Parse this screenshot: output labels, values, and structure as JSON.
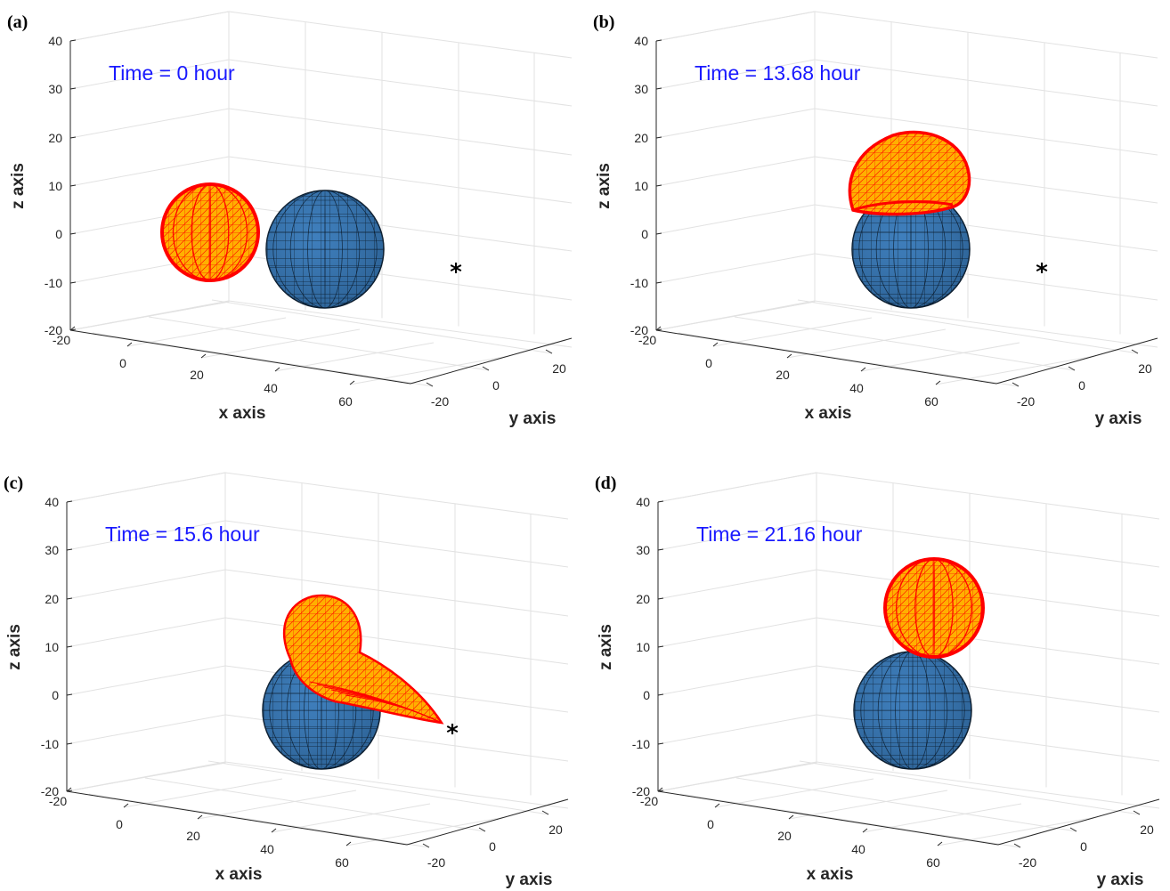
{
  "colors": {
    "time_text": "#1a1aff",
    "blue_sphere": "#3a7ab8",
    "mesh_edge": "#ff0000",
    "mesh_fill": "#ffb000",
    "grid": "#e2e2e2",
    "axis": "#262626"
  },
  "chart_data": [
    {
      "type": "scatter3d",
      "panel_label": "(a)",
      "annotation": "Time = 0 hour",
      "xlabel": "x axis",
      "ylabel": "y axis",
      "zlabel": "z axis",
      "x_ticks": [
        "-20",
        "0",
        "20",
        "40",
        "60"
      ],
      "y_ticks": [
        "-20",
        "0",
        "20"
      ],
      "z_ticks": [
        "40",
        "30",
        "20",
        "10",
        "0",
        "-10",
        "-20"
      ],
      "xlim": [
        -20,
        70
      ],
      "ylim": [
        -25,
        25
      ],
      "zlim": [
        -20,
        40
      ],
      "grid": true,
      "objects": [
        {
          "name": "blue sphere",
          "shape": "sphere"
        },
        {
          "name": "mesh body",
          "shape": "sphere"
        },
        {
          "name": "star marker",
          "marker": "*"
        }
      ]
    },
    {
      "type": "scatter3d",
      "panel_label": "(b)",
      "annotation": "Time = 13.68 hour",
      "xlabel": "x axis",
      "ylabel": "y axis",
      "zlabel": "z axis",
      "x_ticks": [
        "-20",
        "0",
        "20",
        "40",
        "60"
      ],
      "y_ticks": [
        "-20",
        "0",
        "20"
      ],
      "z_ticks": [
        "40",
        "30",
        "20",
        "10",
        "0",
        "-10",
        "-20"
      ],
      "xlim": [
        -20,
        70
      ],
      "ylim": [
        -25,
        25
      ],
      "zlim": [
        -20,
        40
      ],
      "grid": true,
      "objects": [
        {
          "name": "blue sphere",
          "shape": "sphere"
        },
        {
          "name": "mesh body",
          "shape": "deformed"
        },
        {
          "name": "star marker",
          "marker": "*"
        }
      ]
    },
    {
      "type": "scatter3d",
      "panel_label": "(c)",
      "annotation": "Time = 15.6 hour",
      "xlabel": "x axis",
      "ylabel": "y axis",
      "zlabel": "z axis",
      "x_ticks": [
        "-20",
        "0",
        "20",
        "40",
        "60"
      ],
      "y_ticks": [
        "-20",
        "0",
        "20"
      ],
      "z_ticks": [
        "40",
        "30",
        "20",
        "10",
        "0",
        "-10",
        "-20"
      ],
      "xlim": [
        -20,
        70
      ],
      "ylim": [
        -25,
        25
      ],
      "zlim": [
        -20,
        40
      ],
      "grid": true,
      "objects": [
        {
          "name": "blue sphere",
          "shape": "sphere"
        },
        {
          "name": "mesh body",
          "shape": "teardrop"
        },
        {
          "name": "star marker",
          "marker": "*"
        }
      ]
    },
    {
      "type": "scatter3d",
      "panel_label": "(d)",
      "annotation": "Time = 21.16 hour",
      "xlabel": "x axis",
      "ylabel": "y axis",
      "zlabel": "z axis",
      "x_ticks": [
        "-20",
        "0",
        "20",
        "40",
        "60"
      ],
      "y_ticks": [
        "-20",
        "0",
        "20"
      ],
      "z_ticks": [
        "40",
        "30",
        "20",
        "10",
        "0",
        "-10",
        "-20"
      ],
      "xlim": [
        -20,
        70
      ],
      "ylim": [
        -25,
        25
      ],
      "zlim": [
        -20,
        40
      ],
      "grid": true,
      "objects": [
        {
          "name": "blue sphere",
          "shape": "sphere"
        },
        {
          "name": "mesh body",
          "shape": "sphere"
        }
      ]
    }
  ]
}
